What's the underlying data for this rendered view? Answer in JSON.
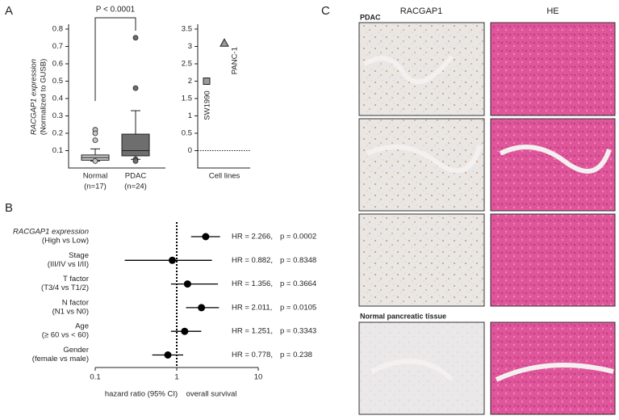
{
  "figure": {
    "panel_labels": [
      "A",
      "B",
      "C"
    ],
    "histology": {
      "columns": [
        "RACGAP1",
        "HE"
      ],
      "groups": [
        "PDAC",
        "Normal pancreatic tissue"
      ]
    }
  },
  "chart_data": [
    {
      "type": "box",
      "ylabel": [
        "RACGAP1 expression",
        "(Normalized to GUSB)"
      ],
      "annotation": "P < 0.0001",
      "categories": [
        "Normal",
        "PDAC"
      ],
      "category_sublabels": [
        "(n=17)",
        "(n=24)"
      ],
      "colors": [
        "#c8c8c8",
        "#6e6e6e"
      ],
      "boxes": [
        {
          "min": 0.04,
          "q1": 0.045,
          "median": 0.06,
          "q3": 0.075,
          "max": 0.11,
          "outliers": [
            0.22,
            0.2,
            0.16,
            0.04
          ]
        },
        {
          "min": 0.05,
          "q1": 0.07,
          "median": 0.1,
          "q3": 0.195,
          "max": 0.33,
          "outliers": [
            0.75,
            0.46,
            0.05,
            0.04
          ]
        }
      ],
      "ylim": [
        0,
        0.8
      ],
      "yticks": [
        0.1,
        0.2,
        0.3,
        0.4,
        0.5,
        0.6,
        0.7,
        0.8
      ]
    },
    {
      "type": "dot",
      "xlabel": "Cell lines",
      "categories": [
        "SW1990",
        "PANC-1"
      ],
      "values": [
        2.0,
        3.1
      ],
      "markers": [
        "square",
        "triangle"
      ],
      "color": "#9a9a9a",
      "zero_line": true,
      "ylim": [
        -0.5,
        3.5
      ],
      "yticks": [
        0,
        0.5,
        1.0,
        1.5,
        2.0,
        2.5,
        3.0,
        3.5
      ]
    },
    {
      "type": "forest",
      "xlabel": "hazard ratio (95% CI)",
      "xlabel2": "overall survival",
      "categories": [
        [
          "RACGAP1 expression",
          "(High vs Low)"
        ],
        [
          "Stage",
          "(III/IV vs I/II)"
        ],
        [
          "T factor",
          "(T3/4 vs T1/2)"
        ],
        [
          "N factor",
          "(N1 vs N0)"
        ],
        [
          "Age",
          "(≥ 60 vs < 60)"
        ],
        [
          "Gender",
          "(female vs male)"
        ]
      ],
      "values": [
        2.266,
        0.882,
        1.356,
        2.011,
        1.251,
        0.778
      ],
      "value_labels": [
        "HR = 2.266,",
        "HR = 0.882,",
        "HR = 1.356,",
        "HR = 2.011,",
        "HR = 1.251,",
        "HR = 0.778,"
      ],
      "p_labels": [
        "p = 0.0002",
        "p = 0.8348",
        "p = 0.3664",
        "p = 0.0105",
        "p = 0.3343",
        "p = 0.238"
      ],
      "ci_low": [
        1.5,
        0.23,
        0.85,
        1.3,
        0.85,
        0.5
      ],
      "ci_high": [
        3.4,
        2.7,
        3.2,
        3.3,
        2.0,
        1.2
      ],
      "color": "#000000",
      "log_x": true,
      "reference_line": 1,
      "xlim": [
        0.1,
        10
      ],
      "xticks": [
        0.1,
        1,
        10
      ]
    }
  ]
}
